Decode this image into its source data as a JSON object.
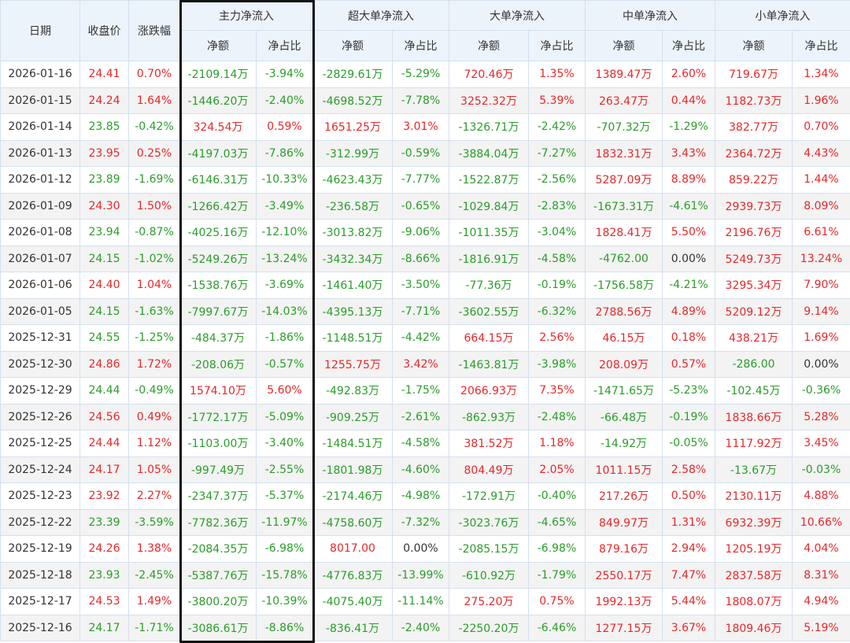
{
  "header": {
    "date": "日期",
    "close": "收盘价",
    "change": "涨跌幅",
    "groups": [
      "主力净流入",
      "超大单净流入",
      "大单净流入",
      "中单净流入",
      "小单净流入"
    ],
    "net": "净额",
    "ratio": "净占比"
  },
  "colors": {
    "up": "#e8272a",
    "down": "#2a9d2a",
    "neutral": "#333333",
    "header_bg": "#edf3fb",
    "grid": "#d4e0ee"
  },
  "rows": [
    [
      "2026-01-16",
      "24.41",
      "0.70%",
      "-2109.14万",
      "-3.94%",
      "-2829.61万",
      "-5.29%",
      "720.46万",
      "1.35%",
      "1389.47万",
      "2.60%",
      "719.67万",
      "1.34%"
    ],
    [
      "2026-01-15",
      "24.24",
      "1.64%",
      "-1446.20万",
      "-2.40%",
      "-4698.52万",
      "-7.78%",
      "3252.32万",
      "5.39%",
      "263.47万",
      "0.44%",
      "1182.73万",
      "1.96%"
    ],
    [
      "2026-01-14",
      "23.85",
      "-0.42%",
      "324.54万",
      "0.59%",
      "1651.25万",
      "3.01%",
      "-1326.71万",
      "-2.42%",
      "-707.32万",
      "-1.29%",
      "382.77万",
      "0.70%"
    ],
    [
      "2026-01-13",
      "23.95",
      "0.25%",
      "-4197.03万",
      "-7.86%",
      "-312.99万",
      "-0.59%",
      "-3884.04万",
      "-7.27%",
      "1832.31万",
      "3.43%",
      "2364.72万",
      "4.43%"
    ],
    [
      "2026-01-12",
      "23.89",
      "-1.69%",
      "-6146.31万",
      "-10.33%",
      "-4623.43万",
      "-7.77%",
      "-1522.87万",
      "-2.56%",
      "5287.09万",
      "8.89%",
      "859.22万",
      "1.44%"
    ],
    [
      "2026-01-09",
      "24.30",
      "1.50%",
      "-1266.42万",
      "-3.49%",
      "-236.58万",
      "-0.65%",
      "-1029.84万",
      "-2.83%",
      "-1673.31万",
      "-4.61%",
      "2939.73万",
      "8.09%"
    ],
    [
      "2026-01-08",
      "23.94",
      "-0.87%",
      "-4025.16万",
      "-12.10%",
      "-3013.82万",
      "-9.06%",
      "-1011.35万",
      "-3.04%",
      "1828.41万",
      "5.50%",
      "2196.76万",
      "6.61%"
    ],
    [
      "2026-01-07",
      "24.15",
      "-1.02%",
      "-5249.26万",
      "-13.24%",
      "-3432.34万",
      "-8.66%",
      "-1816.91万",
      "-4.58%",
      "-4762.00",
      "0.00%",
      "5249.73万",
      "13.24%"
    ],
    [
      "2026-01-06",
      "24.40",
      "1.04%",
      "-1538.76万",
      "-3.69%",
      "-1461.40万",
      "-3.50%",
      "-77.36万",
      "-0.19%",
      "-1756.58万",
      "-4.21%",
      "3295.34万",
      "7.90%"
    ],
    [
      "2026-01-05",
      "24.15",
      "-1.63%",
      "-7997.67万",
      "-14.03%",
      "-4395.13万",
      "-7.71%",
      "-3602.55万",
      "-6.32%",
      "2788.56万",
      "4.89%",
      "5209.12万",
      "9.14%"
    ],
    [
      "2025-12-31",
      "24.55",
      "-1.25%",
      "-484.37万",
      "-1.86%",
      "-1148.51万",
      "-4.42%",
      "664.15万",
      "2.56%",
      "46.15万",
      "0.18%",
      "438.21万",
      "1.69%"
    ],
    [
      "2025-12-30",
      "24.86",
      "1.72%",
      "-208.06万",
      "-0.57%",
      "1255.75万",
      "3.42%",
      "-1463.81万",
      "-3.98%",
      "208.09万",
      "0.57%",
      "-286.00",
      "0.00%"
    ],
    [
      "2025-12-29",
      "24.44",
      "-0.49%",
      "1574.10万",
      "5.60%",
      "-492.83万",
      "-1.75%",
      "2066.93万",
      "7.35%",
      "-1471.65万",
      "-5.23%",
      "-102.45万",
      "-0.36%"
    ],
    [
      "2025-12-26",
      "24.56",
      "0.49%",
      "-1772.17万",
      "-5.09%",
      "-909.25万",
      "-2.61%",
      "-862.93万",
      "-2.48%",
      "-66.48万",
      "-0.19%",
      "1838.66万",
      "5.28%"
    ],
    [
      "2025-12-25",
      "24.44",
      "1.12%",
      "-1103.00万",
      "-3.40%",
      "-1484.51万",
      "-4.58%",
      "381.52万",
      "1.18%",
      "-14.92万",
      "-0.05%",
      "1117.92万",
      "3.45%"
    ],
    [
      "2025-12-24",
      "24.17",
      "1.05%",
      "-997.49万",
      "-2.55%",
      "-1801.98万",
      "-4.60%",
      "804.49万",
      "2.05%",
      "1011.15万",
      "2.58%",
      "-13.67万",
      "-0.03%"
    ],
    [
      "2025-12-23",
      "23.92",
      "2.27%",
      "-2347.37万",
      "-5.37%",
      "-2174.46万",
      "-4.98%",
      "-172.91万",
      "-0.40%",
      "217.26万",
      "0.50%",
      "2130.11万",
      "4.88%"
    ],
    [
      "2025-12-22",
      "23.39",
      "-3.59%",
      "-7782.36万",
      "-11.97%",
      "-4758.60万",
      "-7.32%",
      "-3023.76万",
      "-4.65%",
      "849.97万",
      "1.31%",
      "6932.39万",
      "10.66%"
    ],
    [
      "2025-12-19",
      "24.26",
      "1.38%",
      "-2084.35万",
      "-6.98%",
      "8017.00",
      "0.00%",
      "-2085.15万",
      "-6.98%",
      "879.16万",
      "2.94%",
      "1205.19万",
      "4.04%"
    ],
    [
      "2025-12-18",
      "23.93",
      "-2.45%",
      "-5387.76万",
      "-15.78%",
      "-4776.83万",
      "-13.99%",
      "-610.92万",
      "-1.79%",
      "2550.17万",
      "7.47%",
      "2837.58万",
      "8.31%"
    ],
    [
      "2025-12-17",
      "24.53",
      "1.49%",
      "-3800.20万",
      "-10.39%",
      "-4075.40万",
      "-11.14%",
      "275.20万",
      "0.75%",
      "1992.13万",
      "5.44%",
      "1808.07万",
      "4.94%"
    ],
    [
      "2025-12-16",
      "24.17",
      "-1.71%",
      "-3086.61万",
      "-8.86%",
      "-836.41万",
      "-2.40%",
      "-2250.20万",
      "-6.46%",
      "1277.15万",
      "3.67%",
      "1809.46万",
      "5.19%"
    ]
  ]
}
